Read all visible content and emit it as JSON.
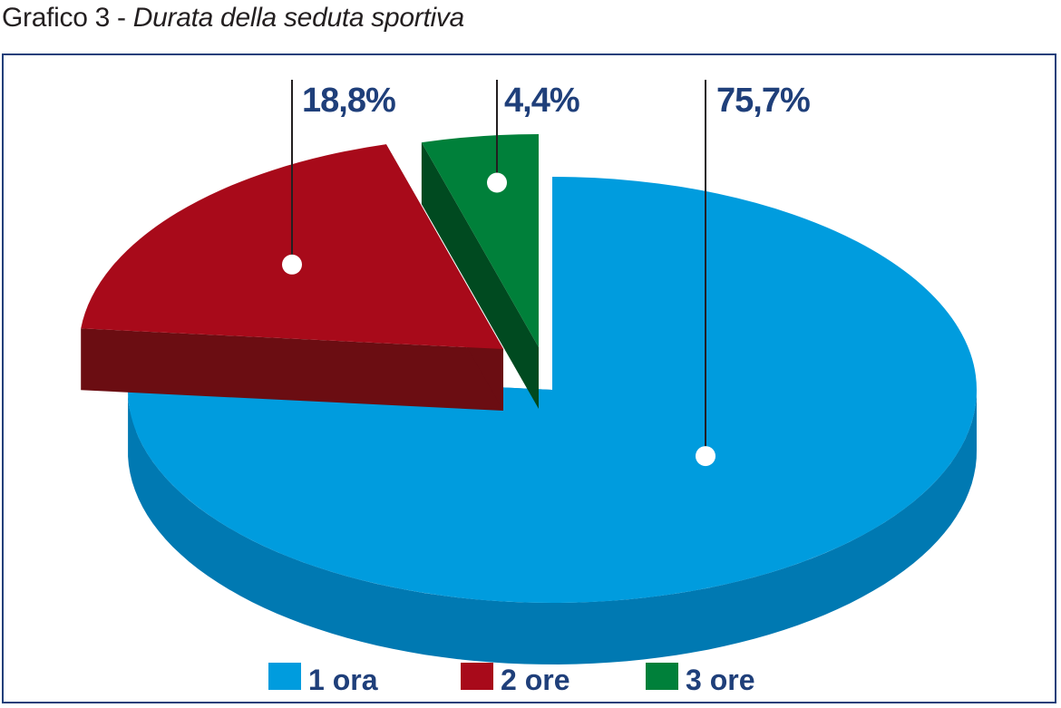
{
  "figure": {
    "title_prefix": "Grafico 3",
    "title_separator": " - ",
    "title_italic": "Durata della seduta sportiva"
  },
  "chart_data": {
    "type": "pie",
    "style": "3d-exploded",
    "slices": [
      {
        "label": "1 ora",
        "value": 75.7,
        "display": "75,7%",
        "color": "#009cde",
        "side_color": "#0079b2"
      },
      {
        "label": "2 ore",
        "value": 18.8,
        "display": "18,8%",
        "color": "#a80a1a",
        "side_color": "#6b0d12"
      },
      {
        "label": "3 ore",
        "value": 4.4,
        "display": "4,4%",
        "color": "#00803a",
        "side_color": "#004a20"
      }
    ],
    "legend_position": "bottom",
    "value_label_color": "#1f3f7a"
  }
}
